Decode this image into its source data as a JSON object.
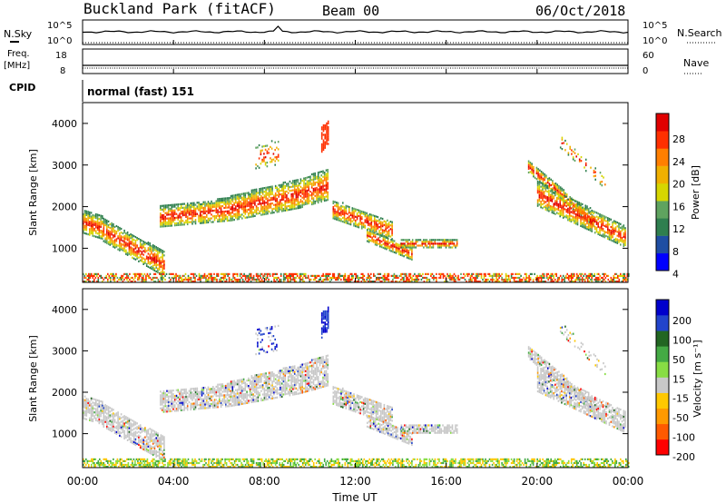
{
  "header": {
    "station": "Buckland Park (fitACF)",
    "beam": "Beam 00",
    "date": "06/Oct/2018"
  },
  "top_panels": {
    "nsky_label": "N.Sky",
    "nsearch_label": "N.Search",
    "freq_label_1": "Freq.",
    "freq_label_2": "[MHz]",
    "nave_label": "Nave",
    "cpid_label": "CPID",
    "cpid_value": "normal (fast) 151",
    "noise_ticks": [
      "10^5",
      "10^0"
    ],
    "freq_ticks": [
      "18",
      "8"
    ],
    "nave_ticks": [
      "60",
      "0"
    ]
  },
  "chart_data": [
    {
      "type": "heatmap",
      "name": "power",
      "xlabel": "Time UT",
      "ylabel": "Slant Range [km]",
      "x_ticks": [
        "00:00",
        "04:00",
        "08:00",
        "12:00",
        "16:00",
        "20:00",
        "00:00"
      ],
      "xlim_hours": [
        0,
        24
      ],
      "y_ticks": [
        1000,
        2000,
        3000,
        4000
      ],
      "ylim_km": [
        180,
        4500
      ],
      "colorbar_label": "Power [dB]",
      "colorbar_ticks": [
        "28",
        "24",
        "20",
        "16",
        "12",
        "8",
        "4"
      ],
      "colors": [
        "#0000ff",
        "#1f4ea3",
        "#2f7f4f",
        "#5fa35f",
        "#d6d600",
        "#f0b000",
        "#ff7f00",
        "#ff3000",
        "#e00000"
      ]
    },
    {
      "type": "heatmap",
      "name": "velocity",
      "xlabel": "Time UT",
      "ylabel": "Slant Range [km]",
      "x_ticks": [
        "00:00",
        "04:00",
        "08:00",
        "12:00",
        "16:00",
        "20:00",
        "00:00"
      ],
      "xlim_hours": [
        0,
        24
      ],
      "y_ticks": [
        1000,
        2000,
        3000,
        4000
      ],
      "ylim_km": [
        180,
        4500
      ],
      "colorbar_label": "Velocity [m s⁻¹]",
      "colorbar_ticks": [
        "200",
        "100",
        "50",
        "15",
        "-15",
        "-50",
        "-100",
        "-200"
      ],
      "colors": [
        "#ff0000",
        "#ff5a00",
        "#ff9a00",
        "#ffc800",
        "#c8c8c8",
        "#88dd44",
        "#44aa44",
        "#226622",
        "#2244cc",
        "#0000cc"
      ]
    }
  ]
}
